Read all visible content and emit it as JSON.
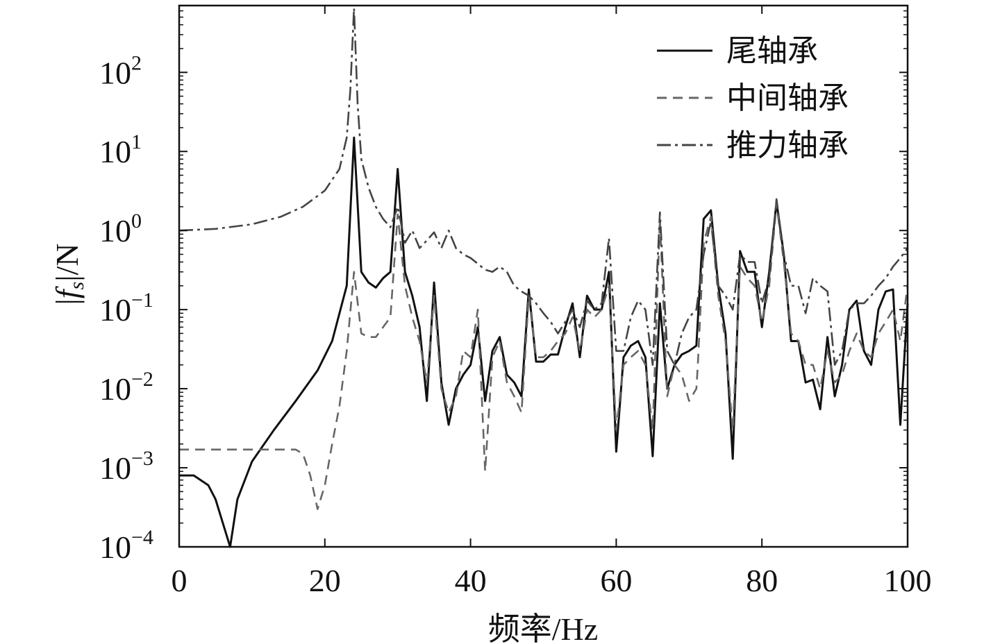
{
  "chart_data": {
    "type": "line",
    "xlabel": "频率/Hz",
    "ylabel": "|f_s|/N",
    "ylabel_parts": {
      "open": "|",
      "f": "f",
      "sub": "s",
      "close": "|/N"
    },
    "xlim": [
      0,
      100
    ],
    "ylim": [
      0.0001,
      700
    ],
    "yscale": "log",
    "grid": false,
    "legend_position": "top-right",
    "x_ticks": [
      {
        "value": 0,
        "label": "0"
      },
      {
        "value": 20,
        "label": "20"
      },
      {
        "value": 40,
        "label": "40"
      },
      {
        "value": 60,
        "label": "60"
      },
      {
        "value": 80,
        "label": "80"
      },
      {
        "value": 100,
        "label": "100"
      }
    ],
    "y_ticks": [
      {
        "value": 0.0001,
        "base": "10",
        "exp": "−4"
      },
      {
        "value": 0.001,
        "base": "10",
        "exp": "−3"
      },
      {
        "value": 0.01,
        "base": "10",
        "exp": "−2"
      },
      {
        "value": 0.1,
        "base": "10",
        "exp": "−1"
      },
      {
        "value": 1,
        "base": "10",
        "exp": "0"
      },
      {
        "value": 10,
        "base": "10",
        "exp": "1"
      },
      {
        "value": 100,
        "base": "10",
        "exp": "2"
      }
    ],
    "series": [
      {
        "name": "尾轴承",
        "style": "solid",
        "color": "#111111",
        "points": [
          [
            0,
            0.0008
          ],
          [
            2,
            0.0008
          ],
          [
            4,
            0.0006
          ],
          [
            5,
            0.0004
          ],
          [
            7,
            0.0001
          ],
          [
            8,
            0.0004
          ],
          [
            10,
            0.0012
          ],
          [
            13,
            0.003
          ],
          [
            16,
            0.007
          ],
          [
            19,
            0.017
          ],
          [
            21,
            0.04
          ],
          [
            23,
            0.2
          ],
          [
            24,
            15
          ],
          [
            25,
            0.3
          ],
          [
            26,
            0.22
          ],
          [
            27,
            0.19
          ],
          [
            28,
            0.25
          ],
          [
            29,
            0.3
          ],
          [
            30,
            6
          ],
          [
            31,
            0.3
          ],
          [
            32,
            0.15
          ],
          [
            33,
            0.06
          ],
          [
            34,
            0.007
          ],
          [
            35,
            0.22
          ],
          [
            36,
            0.012
          ],
          [
            37,
            0.0035
          ],
          [
            38,
            0.01
          ],
          [
            39,
            0.015
          ],
          [
            40,
            0.02
          ],
          [
            41,
            0.06
          ],
          [
            42,
            0.007
          ],
          [
            43,
            0.03
          ],
          [
            44,
            0.045
          ],
          [
            45,
            0.015
          ],
          [
            46,
            0.012
          ],
          [
            47,
            0.008
          ],
          [
            48,
            0.18
          ],
          [
            49,
            0.022
          ],
          [
            50,
            0.022
          ],
          [
            51,
            0.027
          ],
          [
            52,
            0.027
          ],
          [
            53,
            0.06
          ],
          [
            54,
            0.12
          ],
          [
            55,
            0.025
          ],
          [
            56,
            0.15
          ],
          [
            57,
            0.1
          ],
          [
            58,
            0.1
          ],
          [
            59,
            0.3
          ],
          [
            60,
            0.0016
          ],
          [
            61,
            0.025
          ],
          [
            62,
            0.035
          ],
          [
            63,
            0.04
          ],
          [
            64,
            0.025
          ],
          [
            65,
            0.0014
          ],
          [
            66,
            0.12
          ],
          [
            67,
            0.01
          ],
          [
            68,
            0.02
          ],
          [
            69,
            0.027
          ],
          [
            70,
            0.03
          ],
          [
            71,
            0.035
          ],
          [
            72,
            1.4
          ],
          [
            73,
            1.8
          ],
          [
            74,
            0.2
          ],
          [
            75,
            0.05
          ],
          [
            76,
            0.0013
          ],
          [
            77,
            0.55
          ],
          [
            78,
            0.3
          ],
          [
            79,
            0.3
          ],
          [
            80,
            0.06
          ],
          [
            81,
            0.3
          ],
          [
            82,
            2.3
          ],
          [
            83,
            0.5
          ],
          [
            84,
            0.04
          ],
          [
            85,
            0.04
          ],
          [
            86,
            0.012
          ],
          [
            87,
            0.013
          ],
          [
            88,
            0.0055
          ],
          [
            89,
            0.045
          ],
          [
            90,
            0.008
          ],
          [
            91,
            0.02
          ],
          [
            92,
            0.1
          ],
          [
            93,
            0.13
          ],
          [
            94,
            0.03
          ],
          [
            95,
            0.02
          ],
          [
            96,
            0.1
          ],
          [
            97,
            0.17
          ],
          [
            98,
            0.18
          ],
          [
            99,
            0.0035
          ],
          [
            100,
            0.12
          ]
        ]
      },
      {
        "name": "中间轴承",
        "style": "dashed",
        "color": "#666666",
        "points": [
          [
            0,
            0.0017
          ],
          [
            4,
            0.0017
          ],
          [
            8,
            0.0017
          ],
          [
            12,
            0.0017
          ],
          [
            16,
            0.0017
          ],
          [
            17,
            0.0015
          ],
          [
            18,
            0.0008
          ],
          [
            19,
            0.0003
          ],
          [
            20,
            0.0006
          ],
          [
            21,
            0.002
          ],
          [
            22,
            0.006
          ],
          [
            23,
            0.03
          ],
          [
            24,
            0.3
          ],
          [
            25,
            0.05
          ],
          [
            26,
            0.045
          ],
          [
            27,
            0.045
          ],
          [
            28,
            0.06
          ],
          [
            29,
            0.08
          ],
          [
            30,
            1.6
          ],
          [
            31,
            0.2
          ],
          [
            32,
            0.08
          ],
          [
            33,
            0.04
          ],
          [
            34,
            0.012
          ],
          [
            35,
            0.15
          ],
          [
            36,
            0.01
          ],
          [
            37,
            0.005
          ],
          [
            38,
            0.008
          ],
          [
            39,
            0.03
          ],
          [
            40,
            0.025
          ],
          [
            41,
            0.1
          ],
          [
            42,
            0.0009
          ],
          [
            43,
            0.025
          ],
          [
            44,
            0.04
          ],
          [
            45,
            0.012
          ],
          [
            46,
            0.008
          ],
          [
            47,
            0.005
          ],
          [
            48,
            0.15
          ],
          [
            49,
            0.025
          ],
          [
            50,
            0.025
          ],
          [
            51,
            0.03
          ],
          [
            52,
            0.04
          ],
          [
            53,
            0.05
          ],
          [
            54,
            0.08
          ],
          [
            55,
            0.03
          ],
          [
            56,
            0.1
          ],
          [
            57,
            0.08
          ],
          [
            58,
            0.1
          ],
          [
            59,
            0.2
          ],
          [
            60,
            0.003
          ],
          [
            61,
            0.02
          ],
          [
            62,
            0.025
          ],
          [
            63,
            0.03
          ],
          [
            64,
            0.02
          ],
          [
            65,
            0.003
          ],
          [
            66,
            1.4
          ],
          [
            67,
            0.008
          ],
          [
            68,
            0.02
          ],
          [
            69,
            0.015
          ],
          [
            70,
            0.007
          ],
          [
            71,
            0.01
          ],
          [
            71.2,
            0.02
          ],
          [
            72,
            0.7
          ],
          [
            73,
            1.5
          ],
          [
            74,
            0.15
          ],
          [
            75,
            0.04
          ],
          [
            76,
            0.003
          ],
          [
            77,
            0.35
          ],
          [
            78,
            0.25
          ],
          [
            79,
            0.2
          ],
          [
            80,
            0.07
          ],
          [
            81,
            0.2
          ],
          [
            82,
            2.2
          ],
          [
            83,
            0.4
          ],
          [
            84,
            0.05
          ],
          [
            85,
            0.04
          ],
          [
            86,
            0.02
          ],
          [
            87,
            0.02
          ],
          [
            88,
            0.01
          ],
          [
            89,
            0.03
          ],
          [
            90,
            0.012
          ],
          [
            91,
            0.015
          ],
          [
            92,
            0.03
          ],
          [
            93,
            0.05
          ],
          [
            94,
            0.03
          ],
          [
            95,
            0.025
          ],
          [
            96,
            0.05
          ],
          [
            97,
            0.07
          ],
          [
            98,
            0.1
          ],
          [
            99,
            0.04
          ],
          [
            100,
            0.2
          ]
        ]
      },
      {
        "name": "推力轴承",
        "style": "dashdot",
        "color": "#444444",
        "points": [
          [
            0,
            1.0
          ],
          [
            5,
            1.05
          ],
          [
            10,
            1.2
          ],
          [
            14,
            1.5
          ],
          [
            17,
            2.0
          ],
          [
            20,
            3.2
          ],
          [
            22,
            6
          ],
          [
            23,
            15
          ],
          [
            23.5,
            60
          ],
          [
            24,
            650
          ],
          [
            24.5,
            40
          ],
          [
            25,
            8
          ],
          [
            26,
            3.5
          ],
          [
            27,
            2.0
          ],
          [
            28,
            1.4
          ],
          [
            29,
            1.1
          ],
          [
            30,
            2.0
          ],
          [
            31,
            0.7
          ],
          [
            32,
            1.0
          ],
          [
            33,
            0.6
          ],
          [
            34,
            0.75
          ],
          [
            35,
            0.95
          ],
          [
            36,
            0.6
          ],
          [
            37,
            1.0
          ],
          [
            38,
            0.6
          ],
          [
            39,
            0.5
          ],
          [
            40,
            0.45
          ],
          [
            41,
            0.38
          ],
          [
            42,
            0.32
          ],
          [
            43,
            0.3
          ],
          [
            44,
            0.35
          ],
          [
            45,
            0.3
          ],
          [
            46,
            0.2
          ],
          [
            47,
            0.17
          ],
          [
            48,
            0.15
          ],
          [
            49,
            0.12
          ],
          [
            50,
            0.09
          ],
          [
            51,
            0.07
          ],
          [
            52,
            0.05
          ],
          [
            53,
            0.07
          ],
          [
            54,
            0.1
          ],
          [
            55,
            0.06
          ],
          [
            56,
            0.13
          ],
          [
            57,
            0.1
          ],
          [
            58,
            0.12
          ],
          [
            59,
            0.8
          ],
          [
            60,
            0.03
          ],
          [
            61,
            0.03
          ],
          [
            62,
            0.08
          ],
          [
            63,
            0.13
          ],
          [
            64,
            0.1
          ],
          [
            65,
            0.02
          ],
          [
            66,
            1.7
          ],
          [
            67,
            0.03
          ],
          [
            68,
            0.02
          ],
          [
            69,
            0.05
          ],
          [
            70,
            0.08
          ],
          [
            71,
            0.1
          ],
          [
            72,
            0.5
          ],
          [
            73,
            1.3
          ],
          [
            74,
            0.2
          ],
          [
            75,
            0.15
          ],
          [
            76,
            0.1
          ],
          [
            77,
            0.5
          ],
          [
            78,
            0.4
          ],
          [
            79,
            0.4
          ],
          [
            80,
            0.12
          ],
          [
            81,
            0.25
          ],
          [
            82,
            2.5
          ],
          [
            83,
            0.5
          ],
          [
            84,
            0.2
          ],
          [
            85,
            0.2
          ],
          [
            86,
            0.09
          ],
          [
            87,
            0.25
          ],
          [
            88,
            0.2
          ],
          [
            89,
            0.17
          ],
          [
            90,
            0.02
          ],
          [
            91,
            0.03
          ],
          [
            92,
            0.1
          ],
          [
            93,
            0.12
          ],
          [
            94,
            0.12
          ],
          [
            95,
            0.15
          ],
          [
            96,
            0.2
          ],
          [
            97,
            0.25
          ],
          [
            98,
            0.35
          ],
          [
            99,
            0.45
          ],
          [
            100,
            0.6
          ]
        ]
      }
    ]
  }
}
